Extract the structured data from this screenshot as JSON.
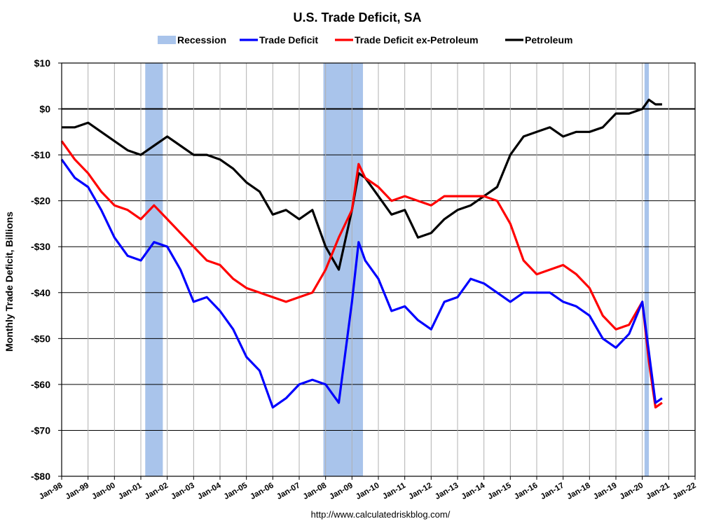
{
  "chart_data": {
    "type": "line",
    "title": "U.S. Trade Deficit, SA",
    "ylabel": "Monthly Trade Deficit, Billions",
    "xlabel": "",
    "source_text": "http://www.calculatedriskblog.com/",
    "ylim": [
      -80,
      10
    ],
    "xlim": [
      "Jan-98",
      "Jan-22"
    ],
    "grid": true,
    "legend_position": "top",
    "y_ticks": [
      {
        "value": 10,
        "label": "$10"
      },
      {
        "value": 0,
        "label": "$0"
      },
      {
        "value": -10,
        "label": "-$10"
      },
      {
        "value": -20,
        "label": "-$20"
      },
      {
        "value": -30,
        "label": "-$30"
      },
      {
        "value": -40,
        "label": "-$40"
      },
      {
        "value": -50,
        "label": "-$50"
      },
      {
        "value": -60,
        "label": "-$60"
      },
      {
        "value": -70,
        "label": "-$70"
      },
      {
        "value": -80,
        "label": "-$80"
      }
    ],
    "x_ticks": [
      "Jan-98",
      "Jan-99",
      "Jan-00",
      "Jan-01",
      "Jan-02",
      "Jan-03",
      "Jan-04",
      "Jan-05",
      "Jan-06",
      "Jan-07",
      "Jan-08",
      "Jan-09",
      "Jan-10",
      "Jan-11",
      "Jan-12",
      "Jan-13",
      "Jan-14",
      "Jan-15",
      "Jan-16",
      "Jan-17",
      "Jan-18",
      "Jan-19",
      "Jan-20",
      "Jan-21",
      "Jan-22"
    ],
    "recessions": [
      {
        "start": "Mar-01",
        "end": "Nov-01"
      },
      {
        "start": "Dec-07",
        "end": "Jun-09"
      },
      {
        "start": "Feb-20",
        "end": "Apr-20"
      }
    ],
    "legend": [
      {
        "label": "Recession",
        "color": "#a9c4eb",
        "kind": "box"
      },
      {
        "label": "Trade Deficit",
        "color": "#0000ff",
        "kind": "line"
      },
      {
        "label": "Trade Deficit ex-Petroleum",
        "color": "#ff0000",
        "kind": "line"
      },
      {
        "label": "Petroleum",
        "color": "#000000",
        "kind": "line"
      }
    ],
    "series": [
      {
        "name": "Trade Deficit",
        "color": "#0000ff",
        "points": [
          [
            "Jan-98",
            -11
          ],
          [
            "Jul-98",
            -15
          ],
          [
            "Jan-99",
            -17
          ],
          [
            "Jul-99",
            -22
          ],
          [
            "Jan-00",
            -28
          ],
          [
            "Jul-00",
            -32
          ],
          [
            "Jan-01",
            -33
          ],
          [
            "Jul-01",
            -29
          ],
          [
            "Jan-02",
            -30
          ],
          [
            "Jul-02",
            -35
          ],
          [
            "Jan-03",
            -42
          ],
          [
            "Jul-03",
            -41
          ],
          [
            "Jan-04",
            -44
          ],
          [
            "Jul-04",
            -48
          ],
          [
            "Jan-05",
            -54
          ],
          [
            "Jul-05",
            -57
          ],
          [
            "Jan-06",
            -65
          ],
          [
            "Jul-06",
            -63
          ],
          [
            "Jan-07",
            -60
          ],
          [
            "Jul-07",
            -59
          ],
          [
            "Jan-08",
            -60
          ],
          [
            "Jul-08",
            -64
          ],
          [
            "Jan-09",
            -42
          ],
          [
            "Apr-09",
            -29
          ],
          [
            "Jul-09",
            -33
          ],
          [
            "Jan-10",
            -37
          ],
          [
            "Jul-10",
            -44
          ],
          [
            "Jan-11",
            -43
          ],
          [
            "Jul-11",
            -46
          ],
          [
            "Jan-12",
            -48
          ],
          [
            "Jul-12",
            -42
          ],
          [
            "Jan-13",
            -41
          ],
          [
            "Jul-13",
            -37
          ],
          [
            "Jan-14",
            -38
          ],
          [
            "Jul-14",
            -40
          ],
          [
            "Jan-15",
            -42
          ],
          [
            "Jul-15",
            -40
          ],
          [
            "Jan-16",
            -40
          ],
          [
            "Jul-16",
            -40
          ],
          [
            "Jan-17",
            -42
          ],
          [
            "Jul-17",
            -43
          ],
          [
            "Jan-18",
            -45
          ],
          [
            "Jul-18",
            -50
          ],
          [
            "Jan-19",
            -52
          ],
          [
            "Jul-19",
            -49
          ],
          [
            "Jan-20",
            -42
          ],
          [
            "Apr-20",
            -53
          ],
          [
            "Jul-20",
            -64
          ],
          [
            "Oct-20",
            -63
          ]
        ]
      },
      {
        "name": "Trade Deficit ex-Petroleum",
        "color": "#ff0000",
        "points": [
          [
            "Jan-98",
            -7
          ],
          [
            "Jul-98",
            -11
          ],
          [
            "Jan-99",
            -14
          ],
          [
            "Jul-99",
            -18
          ],
          [
            "Jan-00",
            -21
          ],
          [
            "Jul-00",
            -22
          ],
          [
            "Jan-01",
            -24
          ],
          [
            "Jul-01",
            -21
          ],
          [
            "Jan-02",
            -24
          ],
          [
            "Jul-02",
            -27
          ],
          [
            "Jan-03",
            -30
          ],
          [
            "Jul-03",
            -33
          ],
          [
            "Jan-04",
            -34
          ],
          [
            "Jul-04",
            -37
          ],
          [
            "Jan-05",
            -39
          ],
          [
            "Jul-05",
            -40
          ],
          [
            "Jan-06",
            -41
          ],
          [
            "Jul-06",
            -42
          ],
          [
            "Jan-07",
            -41
          ],
          [
            "Jul-07",
            -40
          ],
          [
            "Jan-08",
            -35
          ],
          [
            "Jul-08",
            -28
          ],
          [
            "Jan-09",
            -22
          ],
          [
            "Apr-09",
            -12
          ],
          [
            "Jul-09",
            -15
          ],
          [
            "Jan-10",
            -17
          ],
          [
            "Jul-10",
            -20
          ],
          [
            "Jan-11",
            -19
          ],
          [
            "Jul-11",
            -20
          ],
          [
            "Jan-12",
            -21
          ],
          [
            "Jul-12",
            -19
          ],
          [
            "Jan-13",
            -19
          ],
          [
            "Jul-13",
            -19
          ],
          [
            "Jan-14",
            -19
          ],
          [
            "Jul-14",
            -20
          ],
          [
            "Jan-15",
            -25
          ],
          [
            "Jul-15",
            -33
          ],
          [
            "Jan-16",
            -36
          ],
          [
            "Jul-16",
            -35
          ],
          [
            "Jan-17",
            -34
          ],
          [
            "Jul-17",
            -36
          ],
          [
            "Jan-18",
            -39
          ],
          [
            "Jul-18",
            -45
          ],
          [
            "Jan-19",
            -48
          ],
          [
            "Jul-19",
            -47
          ],
          [
            "Jan-20",
            -42
          ],
          [
            "Apr-20",
            -55
          ],
          [
            "Jul-20",
            -65
          ],
          [
            "Oct-20",
            -64
          ]
        ]
      },
      {
        "name": "Petroleum",
        "color": "#000000",
        "points": [
          [
            "Jan-98",
            -4
          ],
          [
            "Jul-98",
            -4
          ],
          [
            "Jan-99",
            -3
          ],
          [
            "Jul-99",
            -5
          ],
          [
            "Jan-00",
            -7
          ],
          [
            "Jul-00",
            -9
          ],
          [
            "Jan-01",
            -10
          ],
          [
            "Jul-01",
            -8
          ],
          [
            "Jan-02",
            -6
          ],
          [
            "Jul-02",
            -8
          ],
          [
            "Jan-03",
            -10
          ],
          [
            "Jul-03",
            -10
          ],
          [
            "Jan-04",
            -11
          ],
          [
            "Jul-04",
            -13
          ],
          [
            "Jan-05",
            -16
          ],
          [
            "Jul-05",
            -18
          ],
          [
            "Jan-06",
            -23
          ],
          [
            "Jul-06",
            -22
          ],
          [
            "Jan-07",
            -24
          ],
          [
            "Jul-07",
            -22
          ],
          [
            "Jan-08",
            -30
          ],
          [
            "Jul-08",
            -35
          ],
          [
            "Jan-09",
            -22
          ],
          [
            "Apr-09",
            -14
          ],
          [
            "Jul-09",
            -15
          ],
          [
            "Jan-10",
            -19
          ],
          [
            "Jul-10",
            -23
          ],
          [
            "Jan-11",
            -22
          ],
          [
            "Jul-11",
            -28
          ],
          [
            "Jan-12",
            -27
          ],
          [
            "Jul-12",
            -24
          ],
          [
            "Jan-13",
            -22
          ],
          [
            "Jul-13",
            -21
          ],
          [
            "Jan-14",
            -19
          ],
          [
            "Jul-14",
            -17
          ],
          [
            "Jan-15",
            -10
          ],
          [
            "Jul-15",
            -6
          ],
          [
            "Jan-16",
            -5
          ],
          [
            "Jul-16",
            -4
          ],
          [
            "Jan-17",
            -6
          ],
          [
            "Jul-17",
            -5
          ],
          [
            "Jan-18",
            -5
          ],
          [
            "Jul-18",
            -4
          ],
          [
            "Jan-19",
            -1
          ],
          [
            "Jul-19",
            -1
          ],
          [
            "Jan-20",
            0
          ],
          [
            "Apr-20",
            2
          ],
          [
            "Jul-20",
            1
          ],
          [
            "Oct-20",
            1
          ]
        ]
      }
    ]
  }
}
